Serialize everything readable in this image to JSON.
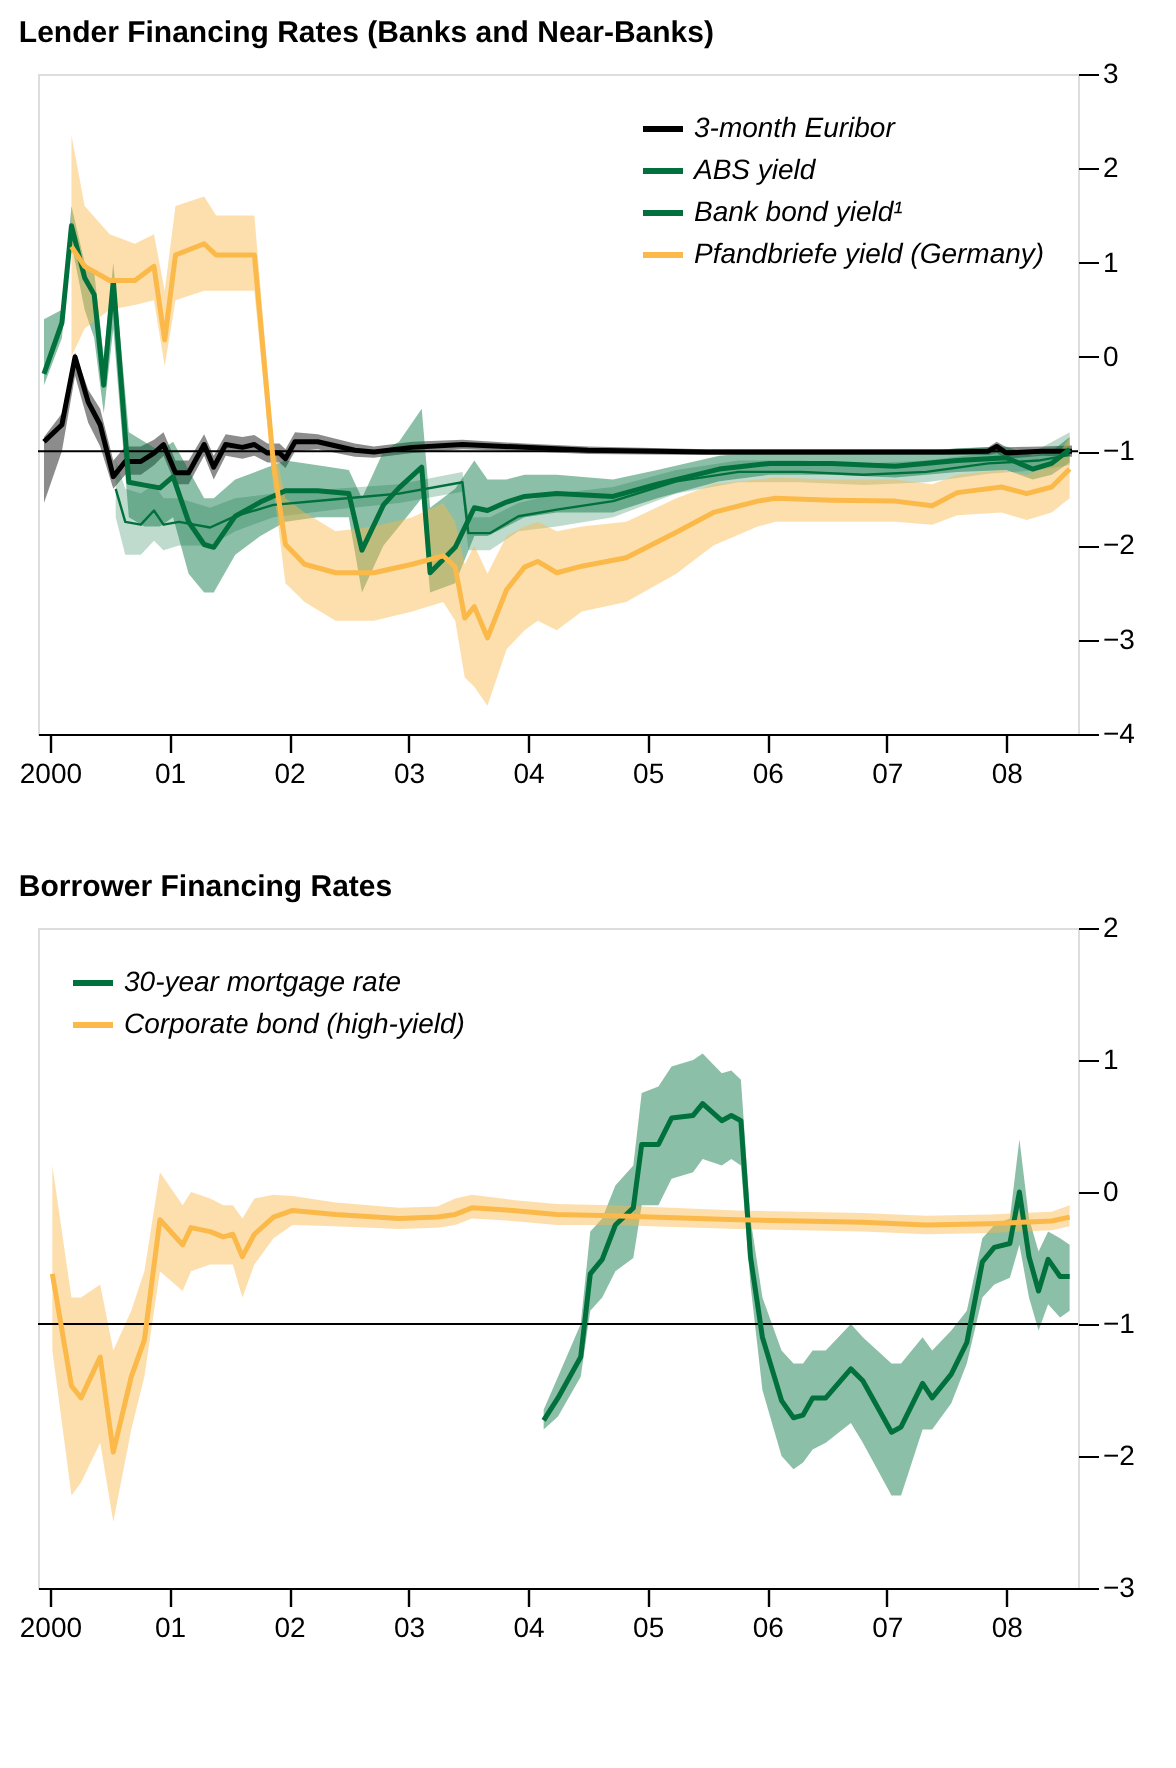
{
  "chart_data": [
    {
      "type": "line",
      "title": "Lender Financing Rates (Banks and Near-Banks)",
      "xlim": [
        1999.9,
        2008.6
      ],
      "xticks": [
        {
          "value": 2000,
          "label": "2000"
        },
        {
          "value": 2001,
          "label": "01"
        },
        {
          "value": 2002,
          "label": "02"
        },
        {
          "value": 2003,
          "label": "03"
        },
        {
          "value": 2004,
          "label": "04"
        },
        {
          "value": 2005,
          "label": "05"
        },
        {
          "value": 2006,
          "label": "06"
        },
        {
          "value": 2007,
          "label": "07"
        },
        {
          "value": 2008,
          "label": "08"
        }
      ],
      "ylim": [
        -4,
        3
      ],
      "yticks": [
        {
          "value": -4,
          "label": "−4"
        },
        {
          "value": -3,
          "label": "−3"
        },
        {
          "value": -2,
          "label": "−2"
        },
        {
          "value": -1,
          "label": "−1"
        },
        0,
        1,
        2,
        3
      ],
      "grid": false,
      "legend": "top right",
      "ref_lines": [
        {
          "axis": "y",
          "value": -1,
          "color": "#000000"
        }
      ],
      "series": [
        {
          "name": "3-month Euribor",
          "color": "#000000",
          "x": [
            1999.95,
            2000.1,
            2000.21,
            2000.32,
            2000.42,
            2000.53,
            2000.63,
            2000.76,
            2000.87,
            2000.95,
            2001.05,
            2001.16,
            2001.29,
            2001.37,
            2001.47,
            2001.61,
            2001.71,
            2001.82,
            2001.92,
            2001.97,
            2002.05,
            2002.24,
            2002.55,
            2002.71,
            2003.03,
            2003.45,
            2003.97,
            2004.5,
            2005.5,
            2006.5,
            2007.5,
            2007.85,
            2007.92,
            2008.0,
            2008.3,
            2008.55
          ],
          "values": [
            -0.9,
            -0.72,
            0.0,
            -0.48,
            -0.72,
            -1.27,
            -1.11,
            -1.11,
            -1.02,
            -0.93,
            -1.23,
            -1.23,
            -0.93,
            -1.17,
            -0.93,
            -0.96,
            -0.93,
            -1.02,
            -1.02,
            -1.08,
            -0.9,
            -0.9,
            -0.99,
            -1.01,
            -0.96,
            -0.93,
            -0.96,
            -0.99,
            -1.01,
            -1.01,
            -1.01,
            -1.0,
            -0.95,
            -1.02,
            -1.0,
            -1.0
          ],
          "lower": [
            -1.55,
            -1.0,
            -0.2,
            -0.7,
            -0.95,
            -1.4,
            -1.25,
            -1.25,
            -1.15,
            -1.05,
            -1.35,
            -1.35,
            -1.05,
            -1.3,
            -1.05,
            -1.08,
            -1.05,
            -1.12,
            -1.12,
            -1.18,
            -1.0,
            -0.98,
            -1.06,
            -1.07,
            -1.02,
            -0.98,
            -1.0,
            -1.03,
            -1.04,
            -1.04,
            -1.04,
            -1.04,
            -1.02,
            -1.08,
            -1.05,
            -1.06
          ],
          "upper": [
            -0.85,
            -0.6,
            0.05,
            -0.35,
            -0.55,
            -1.1,
            -0.95,
            -0.95,
            -0.88,
            -0.8,
            -1.1,
            -1.1,
            -0.82,
            -1.05,
            -0.82,
            -0.85,
            -0.83,
            -0.92,
            -0.92,
            -0.98,
            -0.8,
            -0.82,
            -0.92,
            -0.95,
            -0.9,
            -0.88,
            -0.92,
            -0.95,
            -0.98,
            -0.98,
            -0.98,
            -0.96,
            -0.9,
            -0.96,
            -0.95,
            -0.94
          ]
        },
        {
          "name": "ABS yield",
          "color": "#00703c",
          "x": [
            1999.95,
            2000.1,
            2000.18,
            2000.29,
            2000.37,
            2000.45,
            2000.53,
            2000.66,
            2000.79,
            2000.92,
            2001.03,
            2001.16,
            2001.29,
            2001.37,
            2001.55,
            2001.76,
            2001.97,
            2002.24,
            2002.5,
            2002.61,
            2002.79,
            2002.92,
            2003.11,
            2003.18,
            2003.39,
            2003.55,
            2003.66,
            2003.82,
            2003.97,
            2004.24,
            2004.71,
            2005.08,
            2005.6,
            2006.02,
            2006.54,
            2007.07,
            2007.59,
            2008.0,
            2008.22,
            2008.38,
            2008.53
          ],
          "values": [
            -0.18,
            0.36,
            1.39,
            0.84,
            0.66,
            -0.3,
            0.81,
            -1.33,
            -1.36,
            -1.39,
            -1.27,
            -1.75,
            -1.99,
            -2.02,
            -1.69,
            -1.54,
            -1.42,
            -1.42,
            -1.45,
            -2.05,
            -1.57,
            -1.39,
            -1.17,
            -2.29,
            -2.02,
            -1.6,
            -1.63,
            -1.54,
            -1.48,
            -1.45,
            -1.48,
            -1.35,
            -1.19,
            -1.13,
            -1.13,
            -1.16,
            -1.1,
            -1.07,
            -1.19,
            -1.13,
            -0.98
          ],
          "lower": [
            -0.3,
            0.2,
            1.2,
            0.5,
            0.2,
            -0.6,
            0.3,
            -1.7,
            -1.8,
            -1.8,
            -1.7,
            -2.3,
            -2.5,
            -2.5,
            -2.1,
            -1.9,
            -1.75,
            -1.7,
            -1.7,
            -2.5,
            -2.0,
            -1.8,
            -1.5,
            -2.5,
            -2.4,
            -1.9,
            -1.9,
            -1.8,
            -1.7,
            -1.65,
            -1.65,
            -1.5,
            -1.32,
            -1.25,
            -1.25,
            -1.28,
            -1.22,
            -1.2,
            -1.3,
            -1.25,
            -1.12
          ],
          "upper": [
            0.4,
            0.5,
            1.6,
            1.0,
            0.9,
            0.0,
            1.0,
            -0.8,
            -0.9,
            -1.0,
            -0.9,
            -1.2,
            -1.5,
            -1.5,
            -1.3,
            -1.2,
            -1.1,
            -1.15,
            -1.2,
            -1.5,
            -1.0,
            -0.9,
            -0.55,
            -1.6,
            -1.4,
            -1.1,
            -1.3,
            -1.3,
            -1.25,
            -1.25,
            -1.3,
            -1.2,
            -1.05,
            -1.0,
            -1.0,
            -1.03,
            -0.97,
            -0.95,
            -1.05,
            -1.0,
            -0.85
          ]
        },
        {
          "name": "Bank bond yield¹",
          "color": "#00703c",
          "x": [
            2000.55,
            2000.63,
            2000.76,
            2000.87,
            2000.95,
            2001.08,
            2001.34,
            2001.55,
            2001.87,
            2002.39,
            2002.92,
            2003.45,
            2003.5,
            2003.68,
            2003.92,
            2004.24,
            2004.71,
            2005.24,
            2005.76,
            2006.28,
            2006.81,
            2007.33,
            2007.85,
            2008.27,
            2008.53
          ],
          "values": [
            -1.4,
            -1.75,
            -1.78,
            -1.63,
            -1.78,
            -1.75,
            -1.81,
            -1.69,
            -1.57,
            -1.51,
            -1.45,
            -1.33,
            -1.87,
            -1.87,
            -1.69,
            -1.62,
            -1.53,
            -1.32,
            -1.22,
            -1.22,
            -1.25,
            -1.22,
            -1.13,
            -1.1,
            -1.04
          ],
          "lower": [
            -1.7,
            -2.1,
            -2.1,
            -1.95,
            -2.05,
            -2.0,
            -2.0,
            -1.85,
            -1.7,
            -1.62,
            -1.55,
            -1.43,
            -2.05,
            -2.05,
            -1.85,
            -1.8,
            -1.7,
            -1.45,
            -1.33,
            -1.33,
            -1.36,
            -1.33,
            -1.24,
            -1.2,
            -1.15
          ],
          "upper": [
            -1.1,
            -1.4,
            -1.45,
            -1.35,
            -1.5,
            -1.5,
            -1.6,
            -1.5,
            -1.45,
            -1.4,
            -1.35,
            -1.22,
            -1.7,
            -1.7,
            -1.55,
            -1.45,
            -1.38,
            -1.2,
            -1.1,
            -1.1,
            -1.13,
            -1.1,
            -1.02,
            -0.98,
            -0.8
          ]
        },
        {
          "name": "Pfandbriefe yield (Germany)",
          "color": "#fbb94a",
          "x": [
            2000.18,
            2000.29,
            2000.5,
            2000.71,
            2000.87,
            2000.96,
            2001.05,
            2001.29,
            2001.39,
            2001.71,
            2001.87,
            2001.97,
            2002.13,
            2002.39,
            2002.71,
            2003.03,
            2003.29,
            2003.39,
            2003.47,
            2003.55,
            2003.66,
            2003.82,
            2003.97,
            2004.08,
            2004.24,
            2004.45,
            2004.82,
            2005.24,
            2005.55,
            2005.92,
            2006.07,
            2006.54,
            2007.07,
            2007.38,
            2007.59,
            2007.96,
            2008.17,
            2008.38,
            2008.53
          ],
          "values": [
            1.17,
            0.96,
            0.81,
            0.81,
            0.96,
            0.18,
            1.08,
            1.2,
            1.08,
            1.08,
            -1.14,
            -1.99,
            -2.2,
            -2.29,
            -2.29,
            -2.2,
            -2.11,
            -2.23,
            -2.77,
            -2.65,
            -2.98,
            -2.47,
            -2.23,
            -2.17,
            -2.29,
            -2.22,
            -2.13,
            -1.86,
            -1.65,
            -1.53,
            -1.5,
            -1.52,
            -1.53,
            -1.58,
            -1.44,
            -1.38,
            -1.45,
            -1.38,
            -1.19
          ],
          "lower": [
            0.0,
            0.3,
            0.5,
            0.55,
            0.6,
            -0.1,
            0.6,
            0.7,
            0.7,
            0.7,
            -1.4,
            -2.4,
            -2.6,
            -2.8,
            -2.8,
            -2.7,
            -2.6,
            -2.8,
            -3.4,
            -3.5,
            -3.7,
            -3.1,
            -2.9,
            -2.8,
            -2.9,
            -2.7,
            -2.6,
            -2.3,
            -2.0,
            -1.8,
            -1.75,
            -1.75,
            -1.75,
            -1.78,
            -1.68,
            -1.65,
            -1.73,
            -1.65,
            -1.5
          ],
          "upper": [
            2.35,
            1.6,
            1.3,
            1.2,
            1.3,
            0.7,
            1.6,
            1.7,
            1.5,
            1.5,
            -0.9,
            -1.5,
            -1.65,
            -1.85,
            -1.8,
            -1.7,
            -1.55,
            -1.75,
            -2.2,
            -2.0,
            -2.3,
            -1.9,
            -1.8,
            -1.75,
            -1.85,
            -1.8,
            -1.75,
            -1.5,
            -1.35,
            -1.3,
            -1.28,
            -1.3,
            -1.3,
            -1.35,
            -1.25,
            -1.2,
            -1.25,
            -1.15,
            -0.85
          ]
        }
      ]
    },
    {
      "type": "line",
      "title": "Borrower Financing Rates",
      "xlim": [
        1999.9,
        2008.6
      ],
      "xticks": [
        {
          "value": 2000,
          "label": "2000"
        },
        {
          "value": 2001,
          "label": "01"
        },
        {
          "value": 2002,
          "label": "02"
        },
        {
          "value": 2003,
          "label": "03"
        },
        {
          "value": 2004,
          "label": "04"
        },
        {
          "value": 2005,
          "label": "05"
        },
        {
          "value": 2006,
          "label": "06"
        },
        {
          "value": 2007,
          "label": "07"
        },
        {
          "value": 2008,
          "label": "08"
        }
      ],
      "ylim": [
        -3,
        2
      ],
      "yticks": [
        {
          "value": -3,
          "label": "−3"
        },
        {
          "value": -2,
          "label": "−2"
        },
        {
          "value": -1,
          "label": "−1"
        },
        0,
        1,
        2
      ],
      "grid": false,
      "legend": "top left",
      "ref_lines": [
        {
          "axis": "y",
          "value": -1,
          "color": "#000000"
        }
      ],
      "series": [
        {
          "name": "30-year mortgage rate",
          "color": "#00703c",
          "x": [
            2004.13,
            2004.25,
            2004.44,
            2004.52,
            2004.62,
            2004.73,
            2004.88,
            2004.95,
            2005.09,
            2005.2,
            2005.38,
            2005.46,
            2005.62,
            2005.7,
            2005.78,
            2005.86,
            2005.96,
            2006.12,
            2006.22,
            2006.3,
            2006.38,
            2006.49,
            2006.7,
            2006.8,
            2007.04,
            2007.12,
            2007.3,
            2007.38,
            2007.54,
            2007.67,
            2007.8,
            2007.9,
            2008.03,
            2008.11,
            2008.19,
            2008.27,
            2008.35,
            2008.45,
            2008.53
          ],
          "values": [
            -1.73,
            -1.56,
            -1.25,
            -0.62,
            -0.51,
            -0.25,
            -0.12,
            0.36,
            0.36,
            0.56,
            0.58,
            0.67,
            0.54,
            0.58,
            0.54,
            -0.49,
            -1.1,
            -1.58,
            -1.71,
            -1.69,
            -1.56,
            -1.56,
            -1.34,
            -1.43,
            -1.82,
            -1.78,
            -1.45,
            -1.56,
            -1.38,
            -1.14,
            -0.53,
            -0.42,
            -0.39,
            0.0,
            -0.49,
            -0.75,
            -0.51,
            -0.64,
            -0.64
          ],
          "lower": [
            -1.8,
            -1.7,
            -1.4,
            -0.9,
            -0.8,
            -0.6,
            -0.5,
            -0.1,
            -0.1,
            0.1,
            0.15,
            0.25,
            0.2,
            0.25,
            0.2,
            -0.7,
            -1.5,
            -2.0,
            -2.1,
            -2.05,
            -1.95,
            -1.9,
            -1.75,
            -1.9,
            -2.3,
            -2.3,
            -1.8,
            -1.8,
            -1.6,
            -1.3,
            -0.8,
            -0.7,
            -0.65,
            -0.4,
            -0.8,
            -1.05,
            -0.85,
            -0.95,
            -0.9
          ],
          "upper": [
            -1.65,
            -1.4,
            -1.0,
            -0.3,
            -0.2,
            0.05,
            0.2,
            0.75,
            0.8,
            0.95,
            1.0,
            1.05,
            0.9,
            0.92,
            0.85,
            -0.2,
            -0.8,
            -1.2,
            -1.3,
            -1.3,
            -1.2,
            -1.2,
            -1.0,
            -1.1,
            -1.3,
            -1.3,
            -1.1,
            -1.2,
            -1.05,
            -0.9,
            -0.35,
            -0.25,
            -0.2,
            0.4,
            -0.2,
            -0.45,
            -0.3,
            -0.35,
            -0.4
          ]
        },
        {
          "name": "Corporate bond (high-yield)",
          "color": "#fbb94a",
          "x": [
            2000.02,
            2000.18,
            2000.26,
            2000.42,
            2000.53,
            2000.68,
            2000.79,
            2000.92,
            2001.11,
            2001.18,
            2001.34,
            2001.45,
            2001.53,
            2001.61,
            2001.71,
            2001.87,
            2002.03,
            2002.39,
            2002.92,
            2003.24,
            2003.39,
            2003.53,
            2003.87,
            2004.24,
            2004.7,
            2005.75,
            2006.8,
            2007.33,
            2007.86,
            2008.38,
            2008.53
          ],
          "values": [
            -0.62,
            -1.47,
            -1.56,
            -1.25,
            -1.97,
            -1.4,
            -1.12,
            -0.21,
            -0.4,
            -0.27,
            -0.3,
            -0.34,
            -0.32,
            -0.49,
            -0.32,
            -0.19,
            -0.14,
            -0.17,
            -0.2,
            -0.19,
            -0.17,
            -0.12,
            -0.14,
            -0.17,
            -0.18,
            -0.21,
            -0.23,
            -0.25,
            -0.24,
            -0.22,
            -0.19
          ],
          "lower": [
            -1.2,
            -2.3,
            -2.2,
            -1.9,
            -2.5,
            -1.8,
            -1.4,
            -0.6,
            -0.75,
            -0.6,
            -0.55,
            -0.55,
            -0.55,
            -0.8,
            -0.55,
            -0.35,
            -0.25,
            -0.26,
            -0.28,
            -0.27,
            -0.25,
            -0.2,
            -0.22,
            -0.25,
            -0.25,
            -0.28,
            -0.3,
            -0.32,
            -0.31,
            -0.29,
            -0.26
          ],
          "upper": [
            0.2,
            -0.8,
            -0.8,
            -0.7,
            -1.2,
            -0.9,
            -0.6,
            0.15,
            -0.1,
            0.0,
            -0.05,
            -0.1,
            -0.1,
            -0.2,
            -0.05,
            -0.02,
            -0.03,
            -0.08,
            -0.12,
            -0.11,
            -0.05,
            -0.02,
            -0.06,
            -0.09,
            -0.1,
            -0.14,
            -0.16,
            -0.18,
            -0.17,
            -0.15,
            -0.1
          ]
        }
      ]
    }
  ]
}
